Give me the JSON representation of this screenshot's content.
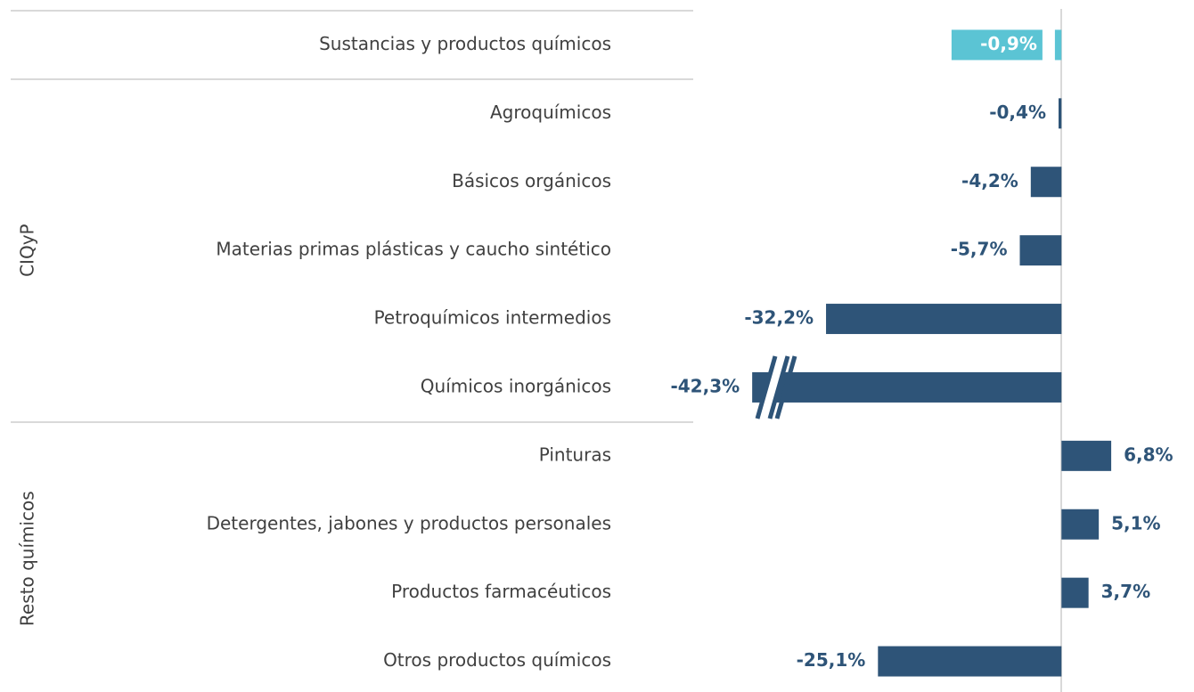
{
  "chart_data": {
    "type": "barh",
    "categories": [
      "Sustancias y productos químicos",
      "Agroquímicos",
      "Básicos orgánicos",
      "Materias primas plásticas y caucho sintético",
      "Petroquímicos intermedios",
      "Químicos inorgánicos",
      "Pinturas",
      "Detergentes, jabones y productos personales",
      "Productos farmacéuticos",
      "Otros productos químicos"
    ],
    "values": [
      -0.9,
      -0.4,
      -4.2,
      -5.7,
      -32.2,
      -42.3,
      6.8,
      5.1,
      3.7,
      -25.1
    ],
    "value_labels": [
      "-0,9%",
      "-0,4%",
      "-4,2%",
      "-5,7%",
      "-32,2%",
      "-42,3%",
      "6,8%",
      "5,1%",
      "3,7%",
      "-25,1%"
    ],
    "colors": [
      "#5bc4d4",
      "#2e5478",
      "#2e5478",
      "#2e5478",
      "#2e5478",
      "#2e5478",
      "#2e5478",
      "#2e5478",
      "#2e5478",
      "#2e5478"
    ],
    "groups": [
      "CIQyP",
      "Resto químicos"
    ],
    "xlim": [
      -45,
      18
    ]
  }
}
